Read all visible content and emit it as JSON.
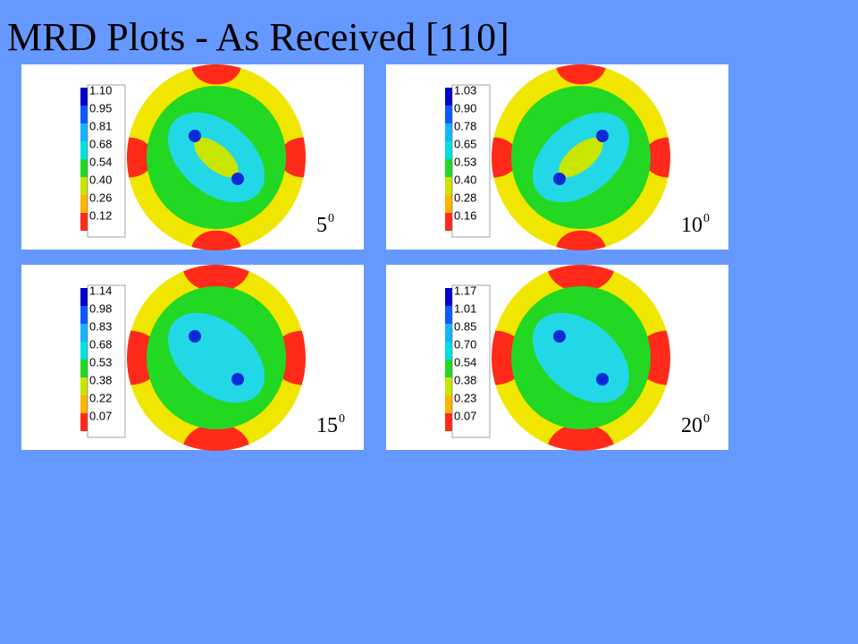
{
  "title": "MRD Plots - As Received [110]",
  "panels": [
    {
      "legend": [
        "1.10",
        "0.95",
        "0.81",
        "0.68",
        "0.54",
        "0.40",
        "0.26",
        "0.12"
      ],
      "angle": "5",
      "degree": "0"
    },
    {
      "legend": [
        "1.03",
        "0.90",
        "0.78",
        "0.65",
        "0.53",
        "0.40",
        "0.28",
        "0.16"
      ],
      "angle": "10",
      "degree": "0"
    },
    {
      "legend": [
        "1.14",
        "0.98",
        "0.83",
        "0.68",
        "0.53",
        "0.38",
        "0.22",
        "0.07"
      ],
      "angle": "15",
      "degree": "0"
    },
    {
      "legend": [
        "1.17",
        "1.01",
        "0.85",
        "0.70",
        "0.54",
        "0.38",
        "0.23",
        "0.07"
      ],
      "angle": "20",
      "degree": "0"
    }
  ]
}
